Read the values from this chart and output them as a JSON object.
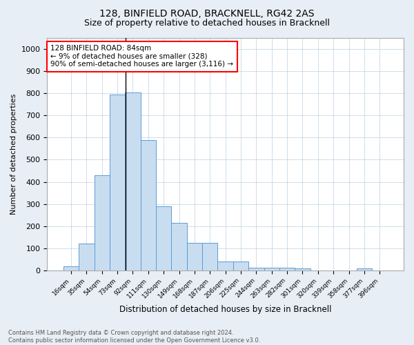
{
  "title1": "128, BINFIELD ROAD, BRACKNELL, RG42 2AS",
  "title2": "Size of property relative to detached houses in Bracknell",
  "xlabel": "Distribution of detached houses by size in Bracknell",
  "ylabel": "Number of detached properties",
  "footnote": "Contains HM Land Registry data © Crown copyright and database right 2024.\nContains public sector information licensed under the Open Government Licence v3.0.",
  "bin_labels": [
    "16sqm",
    "35sqm",
    "54sqm",
    "73sqm",
    "92sqm",
    "111sqm",
    "130sqm",
    "149sqm",
    "168sqm",
    "187sqm",
    "206sqm",
    "225sqm",
    "244sqm",
    "263sqm",
    "282sqm",
    "301sqm",
    "320sqm",
    "339sqm",
    "358sqm",
    "377sqm",
    "396sqm"
  ],
  "bin_values": [
    18,
    120,
    430,
    795,
    805,
    590,
    290,
    215,
    125,
    125,
    40,
    40,
    13,
    12,
    12,
    10,
    0,
    0,
    0,
    10,
    0
  ],
  "bar_color": "#c9ddf0",
  "bar_edge_color": "#5b9bd5",
  "annotation_text": "128 BINFIELD ROAD: 84sqm\n← 9% of detached houses are smaller (328)\n90% of semi-detached houses are larger (3,116) →",
  "annotation_box_color": "white",
  "annotation_box_edge": "red",
  "property_line_x": 3.55,
  "ylim": [
    0,
    1050
  ],
  "yticks": [
    0,
    100,
    200,
    300,
    400,
    500,
    600,
    700,
    800,
    900,
    1000
  ],
  "bg_color": "#e8eef5",
  "plot_bg_color": "white",
  "grid_color": "#b8cfe0"
}
